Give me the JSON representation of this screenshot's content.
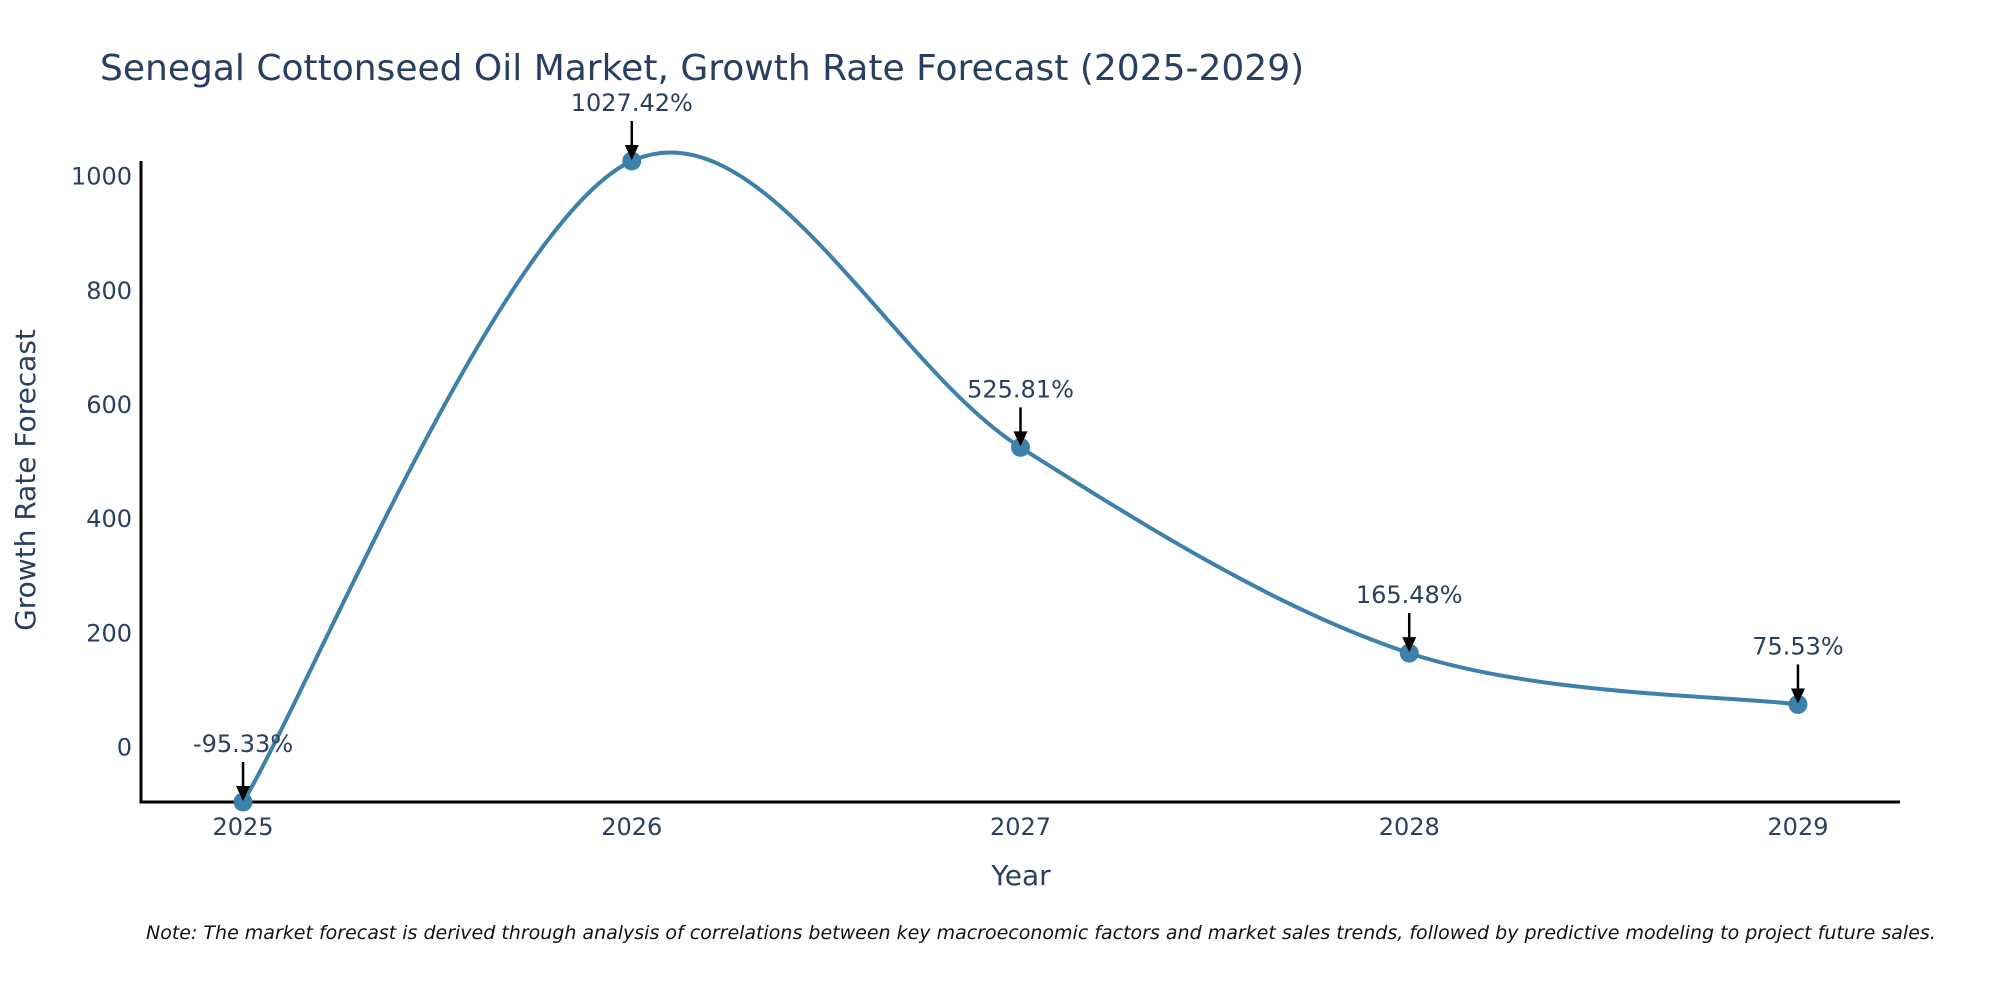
{
  "chart_data": {
    "type": "line",
    "title": "Senegal Cottonseed Oil Market, Growth Rate Forecast (2025-2029)",
    "xlabel": "Year",
    "ylabel": "Growth Rate Forecast",
    "categories": [
      "2025",
      "2026",
      "2027",
      "2028",
      "2029"
    ],
    "values": [
      -95.33,
      1027.42,
      525.81,
      165.48,
      75.53
    ],
    "data_labels": [
      "-95.33%",
      "1027.42%",
      "525.81%",
      "165.48%",
      "75.53%"
    ],
    "y_ticks": [
      0,
      200,
      400,
      600,
      800,
      1000
    ],
    "y_tick_labels": [
      "0",
      "200",
      "400",
      "600",
      "800",
      "1000"
    ],
    "ylim": [
      -95.33,
      1027.42
    ],
    "xlim": [
      2024.7375,
      2029.2625
    ],
    "line_color": "#3d80ab",
    "marker_color": "#3d80ab",
    "arrow_color": "#000000",
    "grid": false,
    "note": "Note: The market forecast is derived through analysis of correlations between key macroeconomic factors and market sales trends, followed by predictive modeling to project future sales."
  }
}
